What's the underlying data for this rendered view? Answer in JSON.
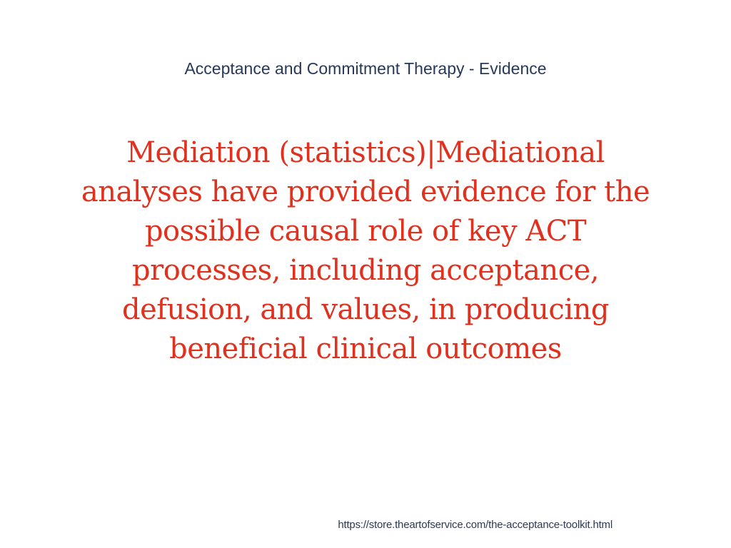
{
  "slide": {
    "title": "Acceptance and Commitment Therapy - Evidence",
    "body_lines": [
      "Mediation (statistics)|Mediational",
      "analyses have provided evidence for the",
      "possible causal role of key ACT",
      "processes, including acceptance,",
      "defusion, and values, in producing",
      "beneficial clinical outcomes"
    ],
    "footer_url": "https://store.theartofservice.com/the-acceptance-toolkit.html",
    "colors": {
      "background": "#ffffff",
      "title_text": "#27395a",
      "body_text": "#e0301e",
      "footer_link": "#2b3a55"
    }
  }
}
